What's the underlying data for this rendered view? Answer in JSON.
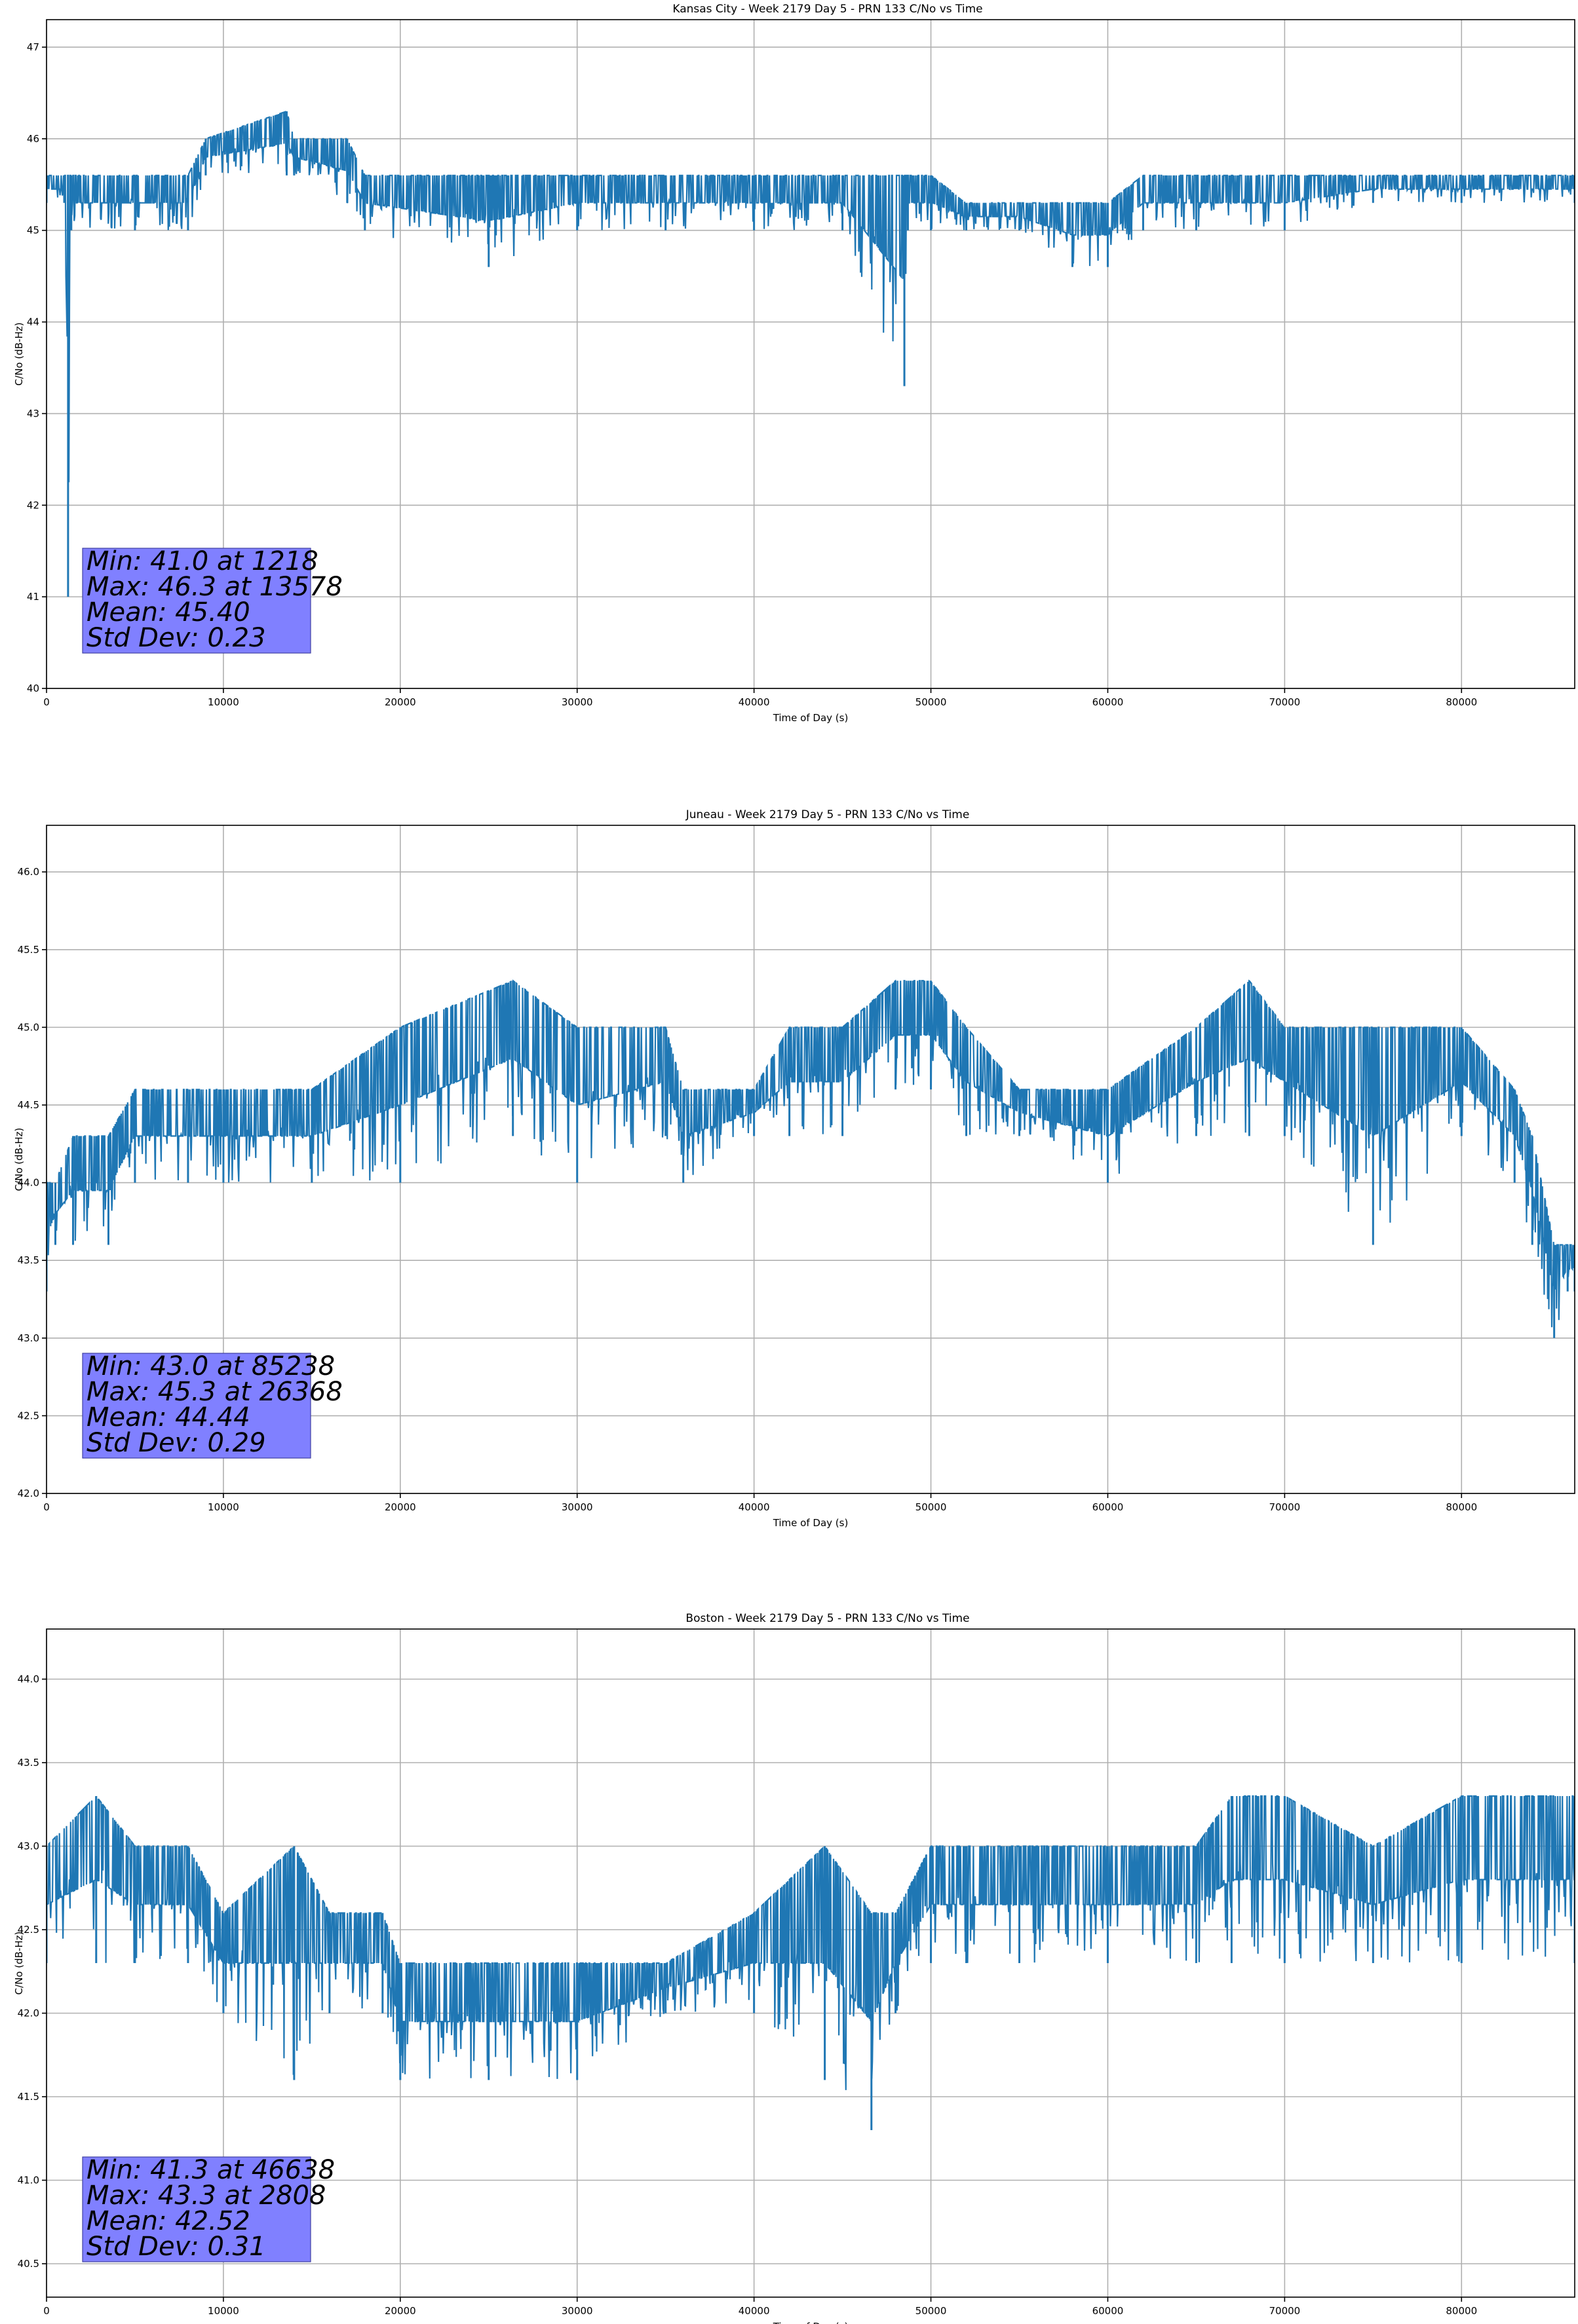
{
  "chart_data": [
    {
      "type": "line",
      "title": "Kansas City - Week 2179 Day 5 - PRN 133 C/No vs Time",
      "xlabel": "Time of Day (s)",
      "ylabel": "C/No (dB-Hz)",
      "xlim": [
        0,
        86400
      ],
      "ylim": [
        40,
        47.3
      ],
      "xticks": [
        0,
        10000,
        20000,
        30000,
        40000,
        50000,
        60000,
        70000,
        80000
      ],
      "yticks": [
        40,
        41,
        42,
        43,
        44,
        45,
        46,
        47
      ],
      "ytick_labels": [
        "40",
        "41",
        "42",
        "43",
        "44",
        "45",
        "46",
        "47"
      ],
      "grid": true,
      "color": "#1f77b4",
      "series": [
        {
          "x": [
            0,
            1000,
            1218,
            1400,
            5000,
            8000,
            9000,
            13578,
            14000,
            17000,
            18000,
            25000,
            30000,
            35000,
            40000,
            45000,
            48500,
            48700,
            50000,
            52000,
            55000,
            58000,
            60000,
            62000,
            65000,
            70000,
            75000,
            80000,
            86400
          ],
          "band_high": [
            45.6,
            45.6,
            45.6,
            45.6,
            45.6,
            45.6,
            46.0,
            46.3,
            46.0,
            46.0,
            45.6,
            45.6,
            45.6,
            45.6,
            45.6,
            45.6,
            45.6,
            45.6,
            45.6,
            45.3,
            45.3,
            45.3,
            45.3,
            45.6,
            45.6,
            45.6,
            45.6,
            45.6,
            45.6
          ],
          "band_low": [
            45.3,
            45.3,
            41.0,
            45.0,
            45.0,
            45.0,
            45.6,
            45.6,
            45.6,
            45.3,
            45.0,
            44.6,
            45.0,
            45.0,
            45.0,
            45.0,
            43.3,
            45.0,
            45.0,
            45.0,
            45.0,
            44.6,
            44.6,
            45.0,
            45.0,
            45.0,
            45.3,
            45.3,
            45.3
          ]
        }
      ],
      "stats_box": [
        "Min: 41.0 at 1218",
        "Max: 46.3 at 13578",
        "Mean: 45.40",
        "Std Dev: 0.23"
      ]
    },
    {
      "type": "line",
      "title": "Juneau - Week 2179 Day 5 - PRN 133 C/No vs Time",
      "xlabel": "Time of Day (s)",
      "ylabel": "C/No (dB-Hz)",
      "xlim": [
        0,
        86400
      ],
      "ylim": [
        42,
        46.3
      ],
      "xticks": [
        0,
        10000,
        20000,
        30000,
        40000,
        50000,
        60000,
        70000,
        80000
      ],
      "yticks": [
        42.0,
        42.5,
        43.0,
        43.5,
        44.0,
        44.5,
        45.0,
        45.5,
        46.0
      ],
      "ytick_labels": [
        "42.0",
        "42.5",
        "43.0",
        "43.5",
        "44.0",
        "44.5",
        "45.0",
        "45.5",
        "46.0"
      ],
      "grid": true,
      "color": "#1f77b4",
      "series": [
        {
          "x": [
            0,
            500,
            1500,
            3500,
            5000,
            8000,
            10000,
            15000,
            20000,
            26368,
            30000,
            35000,
            36000,
            40000,
            42000,
            45000,
            48000,
            50000,
            52000,
            55000,
            60000,
            65000,
            68000,
            70000,
            75000,
            80000,
            83000,
            84000,
            85238,
            86000,
            86400
          ],
          "band_high": [
            44.0,
            44.0,
            44.3,
            44.3,
            44.6,
            44.6,
            44.6,
            44.6,
            45.0,
            45.3,
            45.0,
            45.0,
            44.6,
            44.6,
            45.0,
            45.0,
            45.3,
            45.3,
            45.0,
            44.6,
            44.6,
            45.0,
            45.3,
            45.0,
            45.0,
            45.0,
            44.6,
            44.3,
            43.6,
            43.6,
            43.6
          ],
          "band_low": [
            43.3,
            43.6,
            43.6,
            43.6,
            44.0,
            44.0,
            44.0,
            44.0,
            44.0,
            44.3,
            44.0,
            44.3,
            44.0,
            44.3,
            44.3,
            44.3,
            44.6,
            44.6,
            44.3,
            44.3,
            44.0,
            44.3,
            44.3,
            44.3,
            43.6,
            44.3,
            44.0,
            43.6,
            43.0,
            43.3,
            43.3
          ]
        }
      ],
      "stats_box": [
        "Min: 43.0 at 85238",
        "Max: 45.3 at 26368",
        "Mean: 44.44",
        "Std Dev: 0.29"
      ]
    },
    {
      "type": "line",
      "title": "Boston - Week 2179 Day 5 - PRN 133 C/No vs Time",
      "xlabel": "Time of Day (s)",
      "ylabel": "C/No (dB-Hz)",
      "xlim": [
        0,
        86400
      ],
      "ylim": [
        40.3,
        44.3
      ],
      "xticks": [
        0,
        10000,
        20000,
        30000,
        40000,
        50000,
        60000,
        70000,
        80000
      ],
      "yticks": [
        40.5,
        41.0,
        41.5,
        42.0,
        42.5,
        43.0,
        43.5,
        44.0
      ],
      "ytick_labels": [
        "40.5",
        "41.0",
        "41.5",
        "42.0",
        "42.5",
        "43.0",
        "43.5",
        "44.0"
      ],
      "grid": true,
      "color": "#1f77b4",
      "series": [
        {
          "x": [
            0,
            2808,
            5000,
            8000,
            10000,
            14000,
            16000,
            19000,
            20000,
            25000,
            30000,
            35000,
            40000,
            44000,
            46638,
            48000,
            50000,
            52000,
            55000,
            60000,
            65000,
            67000,
            70000,
            75000,
            80000,
            86400
          ],
          "band_high": [
            43.0,
            43.3,
            43.0,
            43.0,
            42.6,
            43.0,
            42.6,
            42.6,
            42.3,
            42.3,
            42.3,
            42.3,
            42.6,
            43.0,
            42.6,
            42.6,
            43.0,
            43.0,
            43.0,
            43.0,
            43.0,
            43.3,
            43.3,
            43.0,
            43.3,
            43.3
          ],
          "band_low": [
            42.3,
            42.3,
            42.3,
            42.3,
            42.0,
            41.6,
            42.0,
            42.0,
            41.6,
            41.6,
            41.6,
            42.0,
            42.0,
            41.6,
            41.3,
            42.0,
            42.3,
            42.3,
            42.3,
            42.3,
            42.3,
            42.3,
            42.3,
            42.3,
            42.3,
            42.3
          ]
        }
      ],
      "stats_box": [
        "Min: 41.3 at 46638",
        "Max: 43.3 at 2808",
        "Mean: 42.52",
        "Std Dev: 0.31"
      ]
    }
  ]
}
